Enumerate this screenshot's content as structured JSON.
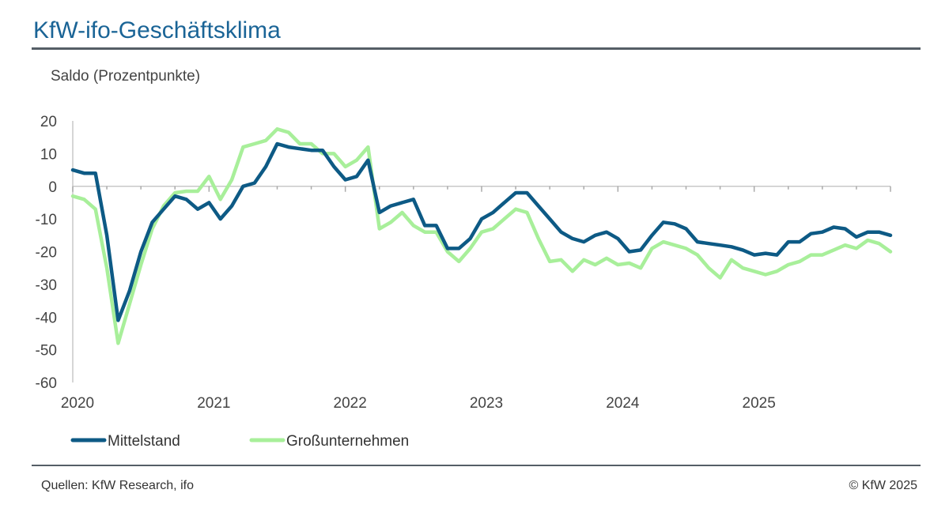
{
  "header": {
    "title": "KfW-ifo-Geschäftsklima"
  },
  "footer": {
    "source": "Quellen: KfW Research, ifo",
    "copyright": "© KfW 2025"
  },
  "chart_data": {
    "type": "line",
    "title": "KfW-ifo-Geschäftsklima",
    "ylabel": "Saldo (Prozentpunkte)",
    "xlabel": "",
    "ylim": [
      -60,
      20
    ],
    "yticks": [
      "20",
      "10",
      "0",
      "-10",
      "-20",
      "-30",
      "-40",
      "-50",
      "-60"
    ],
    "ytick_values": [
      20,
      10,
      0,
      -10,
      -20,
      -30,
      -40,
      -50,
      -60
    ],
    "xticks": [
      "2020",
      "2021",
      "2022",
      "2023",
      "2024",
      "2025"
    ],
    "x_start": "2020-01",
    "x_end": "2025-12",
    "legend_position": "bottom-left",
    "grid": false,
    "series": [
      {
        "name": "Mittelstand",
        "color": "#0d5a85",
        "values": [
          5,
          4,
          4,
          -15,
          -41,
          -32,
          -20,
          -11,
          -7,
          -3,
          -4,
          -7,
          -5,
          -10,
          -6,
          0,
          1,
          6,
          13,
          12,
          11.5,
          11,
          11,
          6,
          2,
          3,
          8,
          -8,
          -6,
          -5,
          -4,
          -12,
          -12,
          -19,
          -19,
          -16,
          -10,
          -8,
          -5,
          -2,
          -2,
          -6,
          -10,
          -14,
          -16,
          -17,
          -15,
          -14,
          -16,
          -20,
          -19.5,
          -15,
          -11,
          -11.5,
          -13,
          -17,
          -17.5,
          -18,
          -18.5,
          -19.5,
          -21,
          -20.5,
          -21,
          -17,
          -17,
          -14.5,
          -14,
          -12.5,
          -13,
          -15.5,
          -14,
          -14,
          -15
        ]
      },
      {
        "name": "Großunternehmen",
        "color": "#a8ef9a",
        "values": [
          -3,
          -4,
          -7,
          -25,
          -48,
          -36,
          -24,
          -13,
          -6,
          -2,
          -1.5,
          -1.5,
          3,
          -4,
          2,
          12,
          13,
          14,
          17.5,
          16.5,
          13,
          13,
          10,
          10,
          6,
          8,
          12,
          -13,
          -11,
          -8,
          -12,
          -14,
          -14,
          -20,
          -23,
          -19,
          -14,
          -13,
          -10,
          -7,
          -8,
          -16,
          -23,
          -22.5,
          -26,
          -22.5,
          -24,
          -22,
          -24,
          -23.5,
          -25,
          -19,
          -17,
          -18,
          -19,
          -21,
          -25,
          -28,
          -22.5,
          -25,
          -26,
          -27,
          -26,
          -24,
          -23,
          -21,
          -21,
          -19.5,
          -18,
          -19,
          -16.5,
          -17.5,
          -20
        ]
      }
    ]
  }
}
